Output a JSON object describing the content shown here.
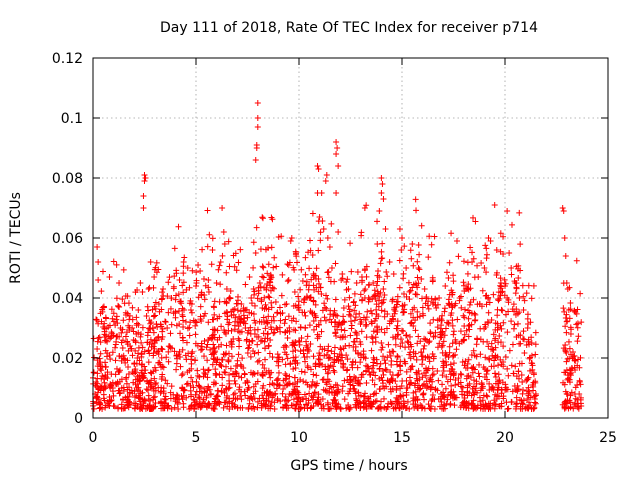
{
  "chart_data": {
    "type": "scatter",
    "title": "Day 111 of 2018, Rate Of TEC Index for receiver p714",
    "xlabel": "GPS time / hours",
    "ylabel": "ROTI / TECUs",
    "xlim": [
      0,
      25
    ],
    "ylim": [
      0,
      0.12
    ],
    "x_ticks": [
      0,
      5,
      10,
      15,
      20,
      25
    ],
    "x_tick_labels": [
      "0",
      "5",
      "10",
      "15",
      "20",
      "25"
    ],
    "y_ticks": [
      0,
      0.02,
      0.04,
      0.06,
      0.08,
      0.1,
      0.12
    ],
    "y_tick_labels": [
      "0",
      "0.02",
      "0.04",
      "0.06",
      "0.08",
      "0.1",
      "0.12"
    ],
    "grid": true,
    "marker": "+",
    "color": "#ff0000",
    "data_coverage_hours": [
      [
        0.0,
        21.5
      ],
      [
        22.8,
        23.7
      ]
    ],
    "series": [
      {
        "name": "ROTI",
        "points": [
          [
            0.1,
            0.008
          ],
          [
            0.15,
            0.012
          ],
          [
            0.2,
            0.023
          ],
          [
            0.2,
            0.057
          ],
          [
            0.25,
            0.052
          ],
          [
            0.25,
            0.046
          ],
          [
            0.3,
            0.018
          ],
          [
            0.35,
            0.005
          ],
          [
            0.4,
            0.01
          ],
          [
            0.45,
            0.014
          ],
          [
            0.8,
            0.047
          ],
          [
            0.8,
            0.007
          ],
          [
            0.9,
            0.006
          ],
          [
            1.5,
            0.009
          ],
          [
            1.6,
            0.013
          ],
          [
            1.7,
            0.017
          ],
          [
            1.8,
            0.024
          ],
          [
            1.9,
            0.03
          ],
          [
            2.0,
            0.018
          ],
          [
            2.1,
            0.028
          ],
          [
            2.2,
            0.036
          ],
          [
            2.3,
            0.045
          ],
          [
            2.4,
            0.042
          ],
          [
            2.5,
            0.081
          ],
          [
            2.5,
            0.079
          ],
          [
            2.45,
            0.074
          ],
          [
            2.45,
            0.07
          ],
          [
            2.55,
            0.08
          ],
          [
            2.6,
            0.034
          ],
          [
            2.7,
            0.043
          ],
          [
            2.8,
            0.052
          ],
          [
            2.9,
            0.03
          ],
          [
            3.0,
            0.025
          ],
          [
            3.2,
            0.038
          ],
          [
            3.4,
            0.043
          ],
          [
            3.6,
            0.03
          ],
          [
            3.8,
            0.04
          ],
          [
            4.0,
            0.035
          ],
          [
            4.2,
            0.046
          ],
          [
            4.4,
            0.052
          ],
          [
            4.6,
            0.05
          ],
          [
            4.8,
            0.038
          ],
          [
            5.0,
            0.044
          ],
          [
            5.1,
            0.051
          ],
          [
            5.2,
            0.049
          ],
          [
            5.4,
            0.041
          ],
          [
            5.6,
            0.046
          ],
          [
            5.8,
            0.056
          ],
          [
            6.0,
            0.045
          ],
          [
            6.2,
            0.052
          ],
          [
            6.35,
            0.062
          ],
          [
            6.4,
            0.058
          ],
          [
            6.5,
            0.043
          ],
          [
            6.8,
            0.036
          ],
          [
            7.0,
            0.032
          ],
          [
            7.2,
            0.038
          ],
          [
            7.4,
            0.03
          ],
          [
            7.6,
            0.047
          ],
          [
            7.8,
            0.043
          ],
          [
            7.9,
            0.055
          ],
          [
            8.0,
            0.105
          ],
          [
            8.0,
            0.1
          ],
          [
            8.0,
            0.097
          ],
          [
            7.95,
            0.091
          ],
          [
            7.95,
            0.09
          ],
          [
            7.9,
            0.086
          ],
          [
            8.1,
            0.045
          ],
          [
            8.3,
            0.032
          ],
          [
            8.6,
            0.026
          ],
          [
            8.9,
            0.03
          ],
          [
            9.2,
            0.035
          ],
          [
            9.5,
            0.046
          ],
          [
            9.6,
            0.059
          ],
          [
            9.65,
            0.06
          ],
          [
            9.8,
            0.042
          ],
          [
            10.0,
            0.036
          ],
          [
            10.3,
            0.03
          ],
          [
            10.5,
            0.04
          ],
          [
            10.7,
            0.048
          ],
          [
            10.9,
            0.084
          ],
          [
            10.95,
            0.083
          ],
          [
            10.9,
            0.075
          ],
          [
            11.0,
            0.067
          ],
          [
            11.1,
            0.075
          ],
          [
            11.2,
            0.063
          ],
          [
            11.3,
            0.079
          ],
          [
            11.35,
            0.081
          ],
          [
            11.4,
            0.06
          ],
          [
            11.5,
            0.057
          ],
          [
            11.6,
            0.05
          ],
          [
            11.8,
            0.092
          ],
          [
            11.85,
            0.09
          ],
          [
            11.8,
            0.088
          ],
          [
            11.9,
            0.084
          ],
          [
            11.8,
            0.075
          ],
          [
            11.9,
            0.062
          ],
          [
            12.1,
            0.048
          ],
          [
            12.4,
            0.043
          ],
          [
            12.8,
            0.045
          ],
          [
            13.2,
            0.04
          ],
          [
            13.6,
            0.045
          ],
          [
            13.8,
            0.058
          ],
          [
            13.9,
            0.069
          ],
          [
            14.0,
            0.08
          ],
          [
            14.05,
            0.078
          ],
          [
            14.0,
            0.075
          ],
          [
            14.1,
            0.073
          ],
          [
            14.2,
            0.063
          ],
          [
            14.4,
            0.052
          ],
          [
            14.6,
            0.048
          ],
          [
            14.9,
            0.063
          ],
          [
            15.0,
            0.06
          ],
          [
            15.2,
            0.05
          ],
          [
            15.5,
            0.058
          ],
          [
            15.8,
            0.05
          ],
          [
            16.1,
            0.043
          ],
          [
            16.5,
            0.038
          ],
          [
            16.8,
            0.04
          ],
          [
            17.1,
            0.044
          ],
          [
            17.4,
            0.035
          ],
          [
            17.8,
            0.04
          ],
          [
            18.1,
            0.043
          ],
          [
            18.4,
            0.052
          ],
          [
            18.7,
            0.047
          ],
          [
            19.0,
            0.05
          ],
          [
            19.2,
            0.06
          ],
          [
            19.3,
            0.059
          ],
          [
            19.5,
            0.071
          ],
          [
            19.6,
            0.056
          ],
          [
            19.8,
            0.045
          ],
          [
            20.0,
            0.044
          ],
          [
            20.2,
            0.055
          ],
          [
            20.3,
            0.05
          ],
          [
            20.5,
            0.045
          ],
          [
            20.7,
            0.04
          ],
          [
            20.9,
            0.036
          ],
          [
            21.1,
            0.03
          ],
          [
            21.3,
            0.025
          ],
          [
            21.4,
            0.015
          ],
          [
            21.5,
            0.008
          ],
          [
            22.8,
            0.07
          ],
          [
            22.85,
            0.069
          ],
          [
            22.9,
            0.06
          ],
          [
            22.95,
            0.054
          ],
          [
            23.0,
            0.045
          ],
          [
            23.05,
            0.043
          ],
          [
            23.1,
            0.036
          ],
          [
            23.2,
            0.028
          ],
          [
            23.3,
            0.022
          ],
          [
            23.4,
            0.016
          ],
          [
            23.5,
            0.011
          ],
          [
            23.6,
            0.008
          ],
          [
            23.7,
            0.004
          ]
        ]
      }
    ]
  }
}
